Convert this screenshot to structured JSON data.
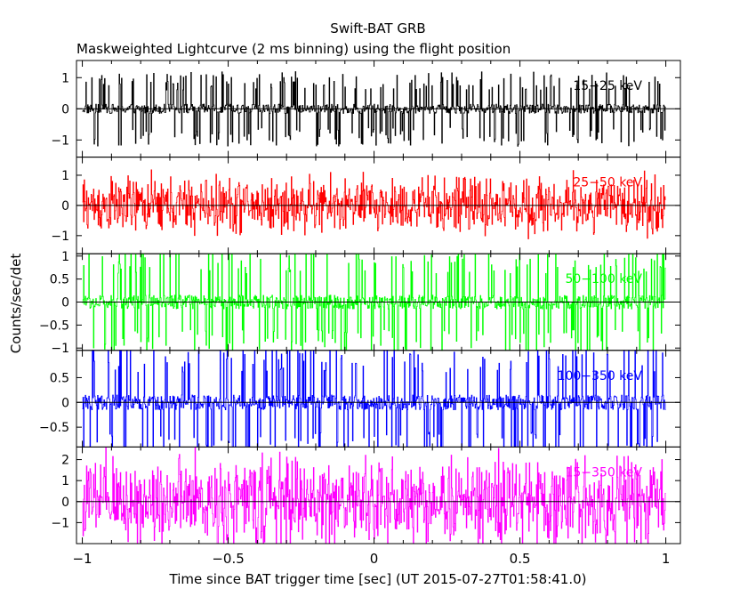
{
  "chart_data": {
    "type": "line",
    "title": "Swift-BAT GRB",
    "subtitle": "Maskweighted Lightcurve (2 ms binning) using the flight position",
    "xlabel": "Time since BAT trigger time [sec] (UT 2015-07-27T01:58:41.0)",
    "ylabel": "Counts/sec/det",
    "xlim": [
      -1.02,
      1.05
    ],
    "x_ticks": [
      -1,
      -0.5,
      0,
      0.5,
      1
    ],
    "x_tick_labels": [
      "−1",
      "−0.5",
      "0",
      "0.5",
      "1"
    ],
    "binning_sec": 0.002,
    "panels": [
      {
        "label": "15−25 keV",
        "color": "#000000",
        "ylim": [
          -1.55,
          1.55
        ],
        "ticks": [
          -1,
          0,
          1
        ],
        "tick_labels": [
          "−1",
          "0",
          "1"
        ],
        "amplitude": 1.0,
        "mode": "discrete"
      },
      {
        "label": "25−50 keV",
        "color": "#ff0000",
        "ylim": [
          -1.6,
          1.6
        ],
        "ticks": [
          -1,
          0,
          1
        ],
        "tick_labels": [
          "−1",
          "0",
          "1"
        ],
        "amplitude": 1.0,
        "mode": "continuous"
      },
      {
        "label": "50−100 keV",
        "color": "#00ff00",
        "ylim": [
          -1.05,
          1.05
        ],
        "ticks": [
          -1,
          -0.5,
          0,
          0.5,
          1
        ],
        "tick_labels": [
          "−1",
          "−0.5",
          "0",
          "0.5",
          "1"
        ],
        "amplitude": 1.0,
        "mode": "discrete"
      },
      {
        "label": "100−350 keV",
        "color": "#0000ff",
        "ylim": [
          -0.9,
          1.05
        ],
        "ticks": [
          -0.5,
          0,
          0.5
        ],
        "tick_labels": [
          "−0.5",
          "0",
          "0.5"
        ],
        "amplitude": 1.0,
        "mode": "discrete"
      },
      {
        "label": "15−350 keV",
        "color": "#ff00ff",
        "ylim": [
          -2.0,
          2.6
        ],
        "ticks": [
          -1,
          0,
          1,
          2
        ],
        "tick_labels": [
          "−1",
          "0",
          "1",
          "2"
        ],
        "amplitude": 2.3,
        "mode": "continuous"
      }
    ]
  }
}
